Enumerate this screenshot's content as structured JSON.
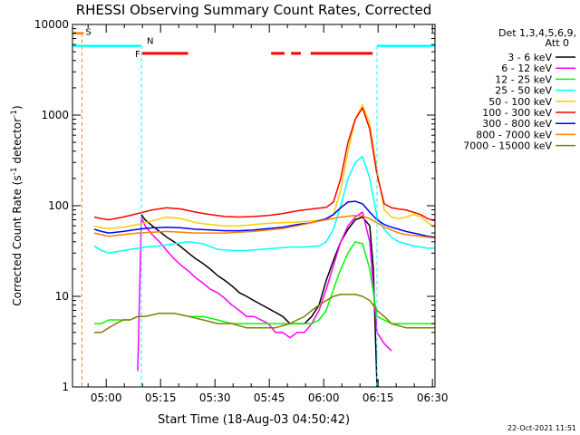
{
  "chart_data": {
    "type": "line",
    "title": "RHESSI Observing Summary Count Rates, Corrected",
    "xlabel": "Start Time (18-Aug-03 04:50:42)",
    "ylabel_main": "Corrected Count Rate (s",
    "ylabel_sup": "-1",
    "ylabel_tail": " detector",
    "ylabel_end": ")",
    "x_units": "minutes after 04:50:42 UT",
    "xlim": [
      0,
      100
    ],
    "ylim": [
      1,
      10000
    ],
    "ylog": true,
    "xticks": [
      {
        "x": 9.3,
        "label": "05:00"
      },
      {
        "x": 24.3,
        "label": "05:15"
      },
      {
        "x": 39.3,
        "label": "05:30"
      },
      {
        "x": 54.3,
        "label": "05:45"
      },
      {
        "x": 69.3,
        "label": "06:00"
      },
      {
        "x": 84.3,
        "label": "06:15"
      },
      {
        "x": 99.3,
        "label": "06:30"
      }
    ],
    "yticks": [
      {
        "y": 1,
        "label": "1"
      },
      {
        "y": 10,
        "label": "10"
      },
      {
        "y": 100,
        "label": "100"
      },
      {
        "y": 1000,
        "label": "1000"
      },
      {
        "y": 10000,
        "label": "10000"
      }
    ],
    "legend_position": "right",
    "legend_header": [
      "Det 1,3,4,5,6,9,",
      "Att 0"
    ],
    "series": [
      {
        "name": "3 - 6 keV",
        "color": "#000000",
        "x": [
          19,
          20,
          22,
          24,
          26,
          28,
          30,
          32,
          34,
          36,
          38,
          40,
          42,
          44,
          45,
          46,
          48,
          50,
          55,
          58,
          60,
          62,
          64,
          66,
          68,
          70,
          72,
          74,
          76,
          78,
          80,
          82,
          83,
          84
        ],
        "y": [
          80,
          70,
          60,
          52,
          45,
          40,
          35,
          30,
          26,
          23,
          20,
          17,
          15,
          13,
          12,
          11,
          10,
          9,
          7,
          6,
          5,
          5,
          5,
          6,
          8,
          15,
          25,
          40,
          55,
          70,
          75,
          60,
          20,
          1
        ]
      },
      {
        "name": "6 - 12 keV",
        "color": "#ff00ff",
        "x": [
          18,
          19,
          20,
          22,
          24,
          26,
          28,
          30,
          32,
          34,
          36,
          38,
          40,
          42,
          44,
          46,
          48,
          50,
          52,
          54,
          56,
          58,
          60,
          62,
          64,
          66,
          68,
          70,
          72,
          74,
          76,
          78,
          80,
          82,
          84,
          86,
          88
        ],
        "y": [
          1.5,
          75,
          60,
          48,
          40,
          32,
          26,
          22,
          19,
          16,
          14,
          12,
          11,
          9.5,
          8,
          7,
          6,
          6,
          5.5,
          5,
          4,
          4,
          3.5,
          4,
          4,
          5,
          7,
          12,
          22,
          40,
          60,
          75,
          85,
          40,
          4,
          3,
          2.5
        ]
      },
      {
        "name": "12 - 25 keV",
        "color": "#00ff00",
        "x": [
          6,
          8,
          10,
          12,
          14,
          16,
          18,
          20,
          24,
          28,
          32,
          36,
          40,
          44,
          48,
          52,
          56,
          58,
          60,
          62,
          64,
          66,
          68,
          70,
          72,
          74,
          76,
          78,
          80,
          82,
          84,
          88,
          92,
          96,
          100
        ],
        "y": [
          5,
          5,
          5.5,
          5.5,
          5.5,
          5.5,
          6,
          6,
          6.5,
          6.5,
          6,
          6,
          5.5,
          5,
          5,
          5,
          5,
          5,
          5,
          5,
          5,
          5,
          5.5,
          7,
          12,
          20,
          30,
          40,
          38,
          20,
          6,
          5,
          5,
          5,
          5
        ]
      },
      {
        "name": "25 - 50 keV",
        "color": "#00ffff",
        "x": [
          6,
          8,
          10,
          12,
          16,
          20,
          24,
          28,
          32,
          36,
          40,
          44,
          48,
          52,
          56,
          60,
          64,
          68,
          70,
          72,
          74,
          76,
          78,
          80,
          82,
          84,
          86,
          88,
          90,
          92,
          94,
          96,
          98,
          100
        ],
        "y": [
          36,
          32,
          30,
          31,
          33,
          35,
          36,
          38,
          40,
          38,
          33,
          32,
          32,
          33,
          34,
          35,
          35,
          36,
          40,
          55,
          100,
          200,
          300,
          350,
          200,
          75,
          55,
          45,
          40,
          38,
          36,
          35,
          34,
          34
        ]
      },
      {
        "name": "50 - 100 keV",
        "color": "#ffcc00",
        "x": [
          6,
          8,
          10,
          14,
          18,
          22,
          26,
          30,
          34,
          38,
          42,
          46,
          50,
          54,
          58,
          62,
          66,
          70,
          72,
          74,
          76,
          78,
          80,
          82,
          84,
          86,
          88,
          90,
          92,
          94,
          96,
          98,
          100
        ],
        "y": [
          60,
          57,
          56,
          58,
          62,
          68,
          75,
          72,
          65,
          62,
          60,
          60,
          62,
          64,
          65,
          66,
          68,
          70,
          80,
          150,
          400,
          900,
          1300,
          800,
          250,
          90,
          75,
          72,
          75,
          80,
          76,
          65,
          58
        ]
      },
      {
        "name": "100 - 300 keV",
        "color": "#ff0000",
        "x": [
          6,
          8,
          10,
          14,
          18,
          22,
          26,
          30,
          34,
          38,
          42,
          46,
          50,
          54,
          58,
          62,
          66,
          70,
          72,
          74,
          76,
          78,
          80,
          82,
          84,
          86,
          88,
          90,
          92,
          94,
          96,
          98,
          100
        ],
        "y": [
          75,
          72,
          70,
          75,
          82,
          90,
          95,
          92,
          85,
          80,
          76,
          75,
          76,
          78,
          82,
          88,
          92,
          96,
          110,
          200,
          500,
          900,
          1200,
          700,
          220,
          105,
          95,
          92,
          90,
          85,
          80,
          72,
          68
        ]
      },
      {
        "name": "300 - 800 keV",
        "color": "#0000ff",
        "x": [
          6,
          8,
          10,
          14,
          18,
          22,
          26,
          30,
          34,
          38,
          42,
          46,
          50,
          54,
          58,
          62,
          66,
          70,
          72,
          74,
          76,
          78,
          80,
          82,
          84,
          86,
          88,
          90,
          92,
          94,
          96,
          98,
          100
        ],
        "y": [
          55,
          52,
          50,
          52,
          55,
          57,
          58,
          57,
          55,
          54,
          53,
          53,
          54,
          56,
          58,
          62,
          65,
          72,
          80,
          95,
          110,
          112,
          105,
          85,
          70,
          62,
          58,
          55,
          52,
          50,
          48,
          46,
          45
        ]
      },
      {
        "name": "800 - 7000 keV",
        "color": "#ff8000",
        "x": [
          6,
          8,
          10,
          14,
          18,
          22,
          26,
          30,
          34,
          38,
          42,
          46,
          50,
          54,
          58,
          62,
          66,
          70,
          74,
          78,
          80,
          82,
          84,
          86,
          88,
          90,
          92,
          94,
          96,
          98,
          100
        ],
        "y": [
          50,
          48,
          46,
          48,
          50,
          51,
          52,
          51,
          50,
          50,
          50,
          51,
          52,
          54,
          56,
          60,
          65,
          70,
          75,
          78,
          77,
          72,
          65,
          58,
          54,
          50,
          48,
          47,
          46,
          45,
          44
        ]
      },
      {
        "name": "7000 - 15000 keV",
        "color": "#808000",
        "x": [
          6,
          8,
          10,
          12,
          14,
          16,
          18,
          20,
          24,
          28,
          32,
          36,
          40,
          44,
          48,
          52,
          56,
          60,
          62,
          64,
          66,
          68,
          70,
          72,
          74,
          76,
          78,
          80,
          82,
          84,
          86,
          88,
          92,
          96,
          100
        ],
        "y": [
          4,
          4,
          4.5,
          5,
          5.5,
          5.5,
          6,
          6,
          6.5,
          6.5,
          6,
          5.5,
          5,
          5,
          4.5,
          4.5,
          4.5,
          5,
          5.5,
          6,
          7,
          8,
          9,
          10,
          10.5,
          10.5,
          10.5,
          10,
          9,
          7,
          6,
          5,
          4.5,
          4.5,
          4.5
        ]
      }
    ],
    "annotations": {
      "saa_label": "S",
      "night_label": "N",
      "flare_label": "F",
      "night_level": 5800,
      "night_boundaries": [
        0,
        19,
        84,
        100
      ],
      "saa_x": 2.6,
      "saa_level": 8000,
      "flare_bars": [
        [
          19.2,
          31.9
        ],
        [
          54.8,
          58.5
        ],
        [
          60.3,
          63.0
        ],
        [
          65.7,
          82.8
        ]
      ],
      "flare_level": 4800
    },
    "annotation_colors": {
      "saa": "#ff8000",
      "night": "#00ffff",
      "flare": "#ff0000"
    }
  },
  "footer": {
    "timestamp": "22-Oct-2021 11:51"
  }
}
